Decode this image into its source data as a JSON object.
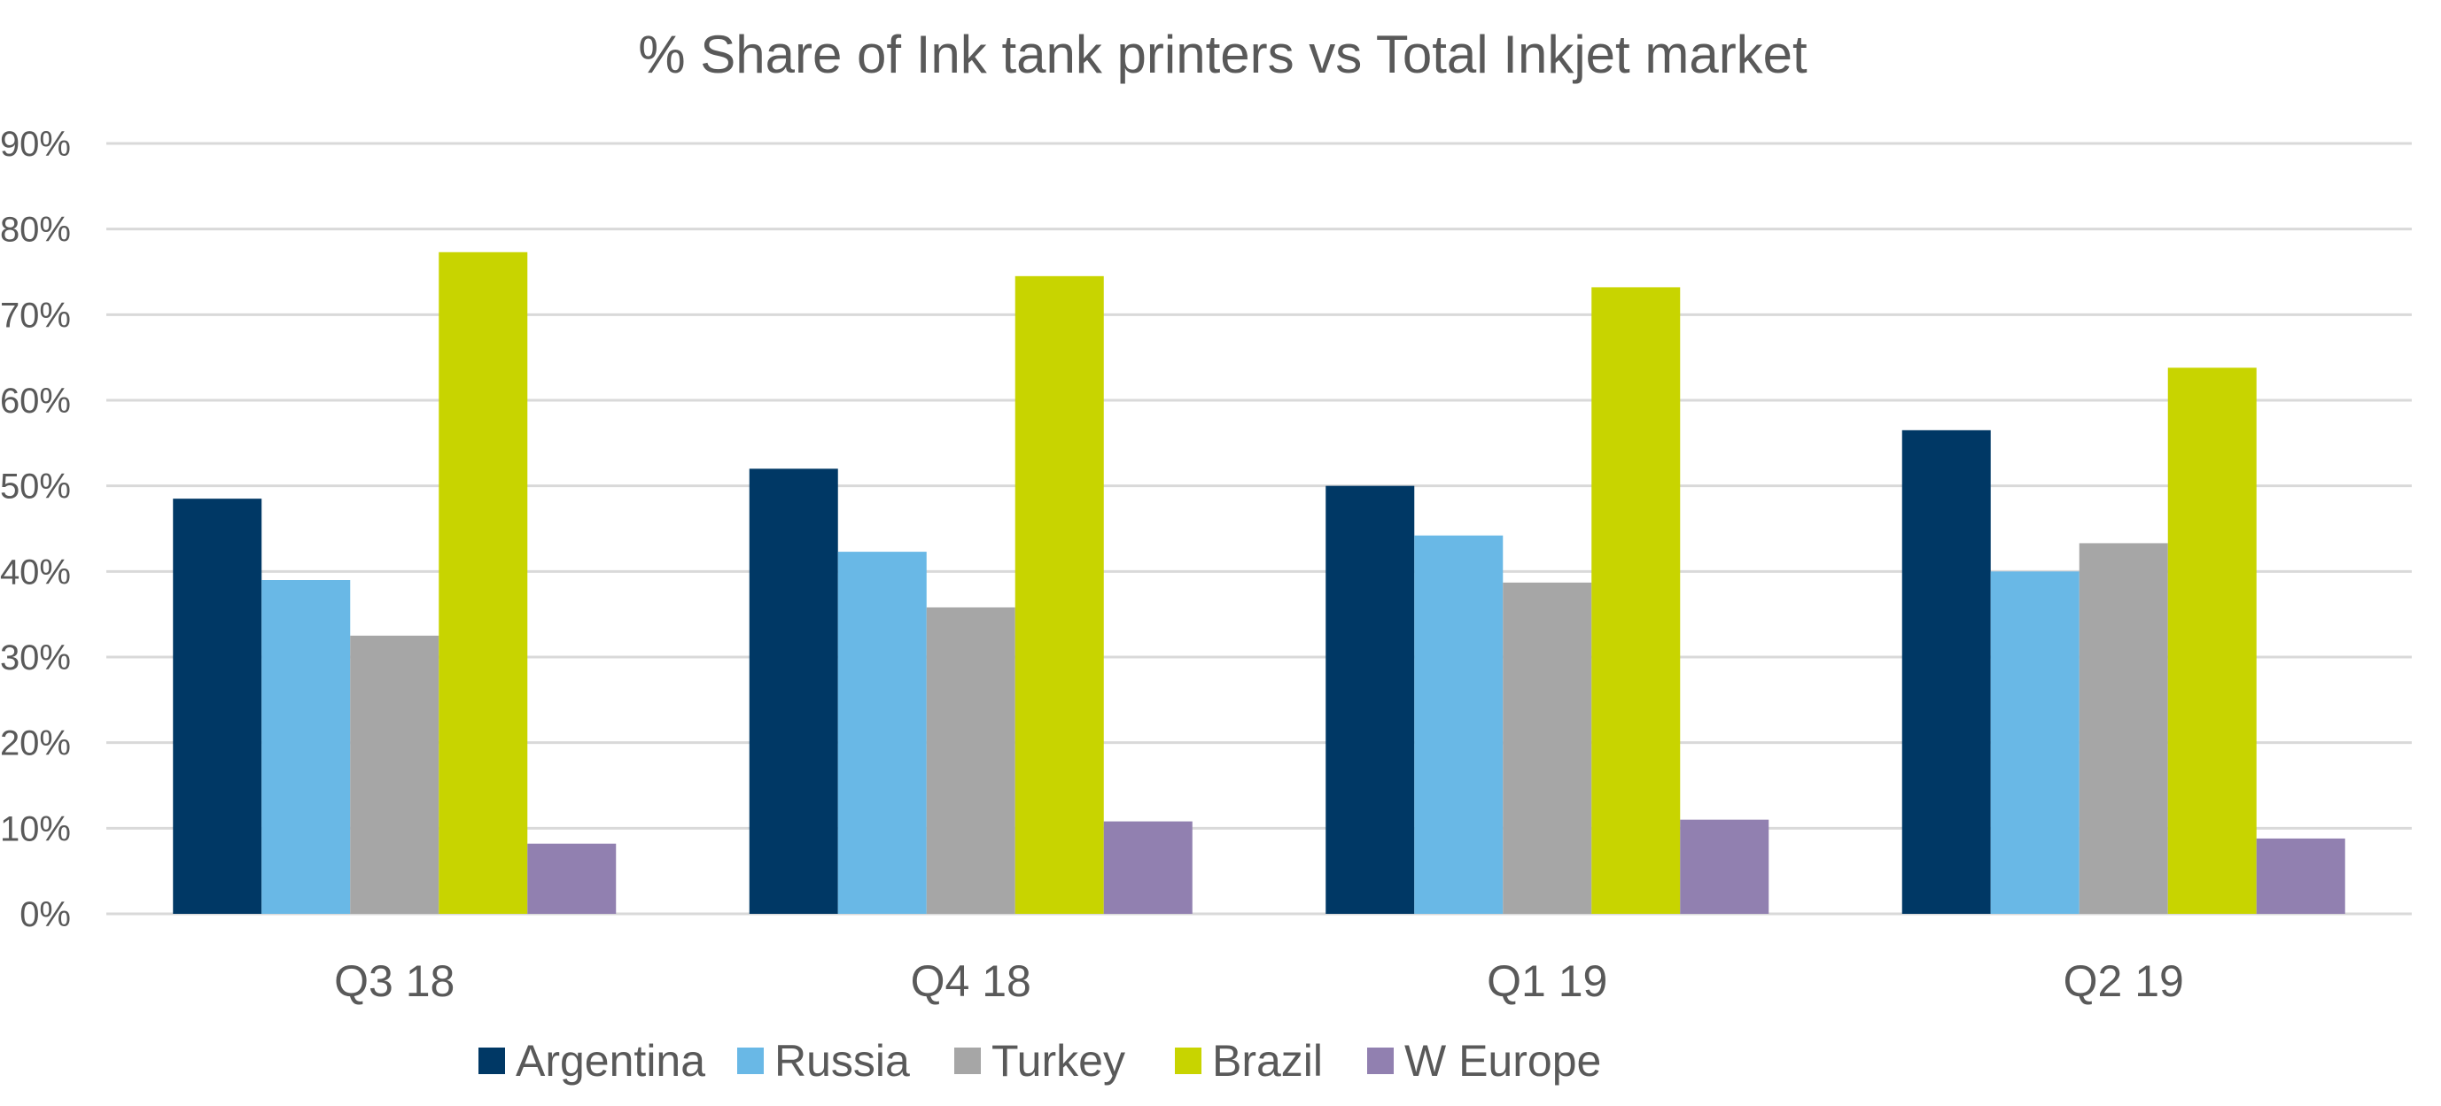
{
  "chart_data": {
    "type": "bar",
    "title": "% Share of Ink tank printers vs Total Inkjet market",
    "xlabel": "",
    "ylabel": "",
    "categories": [
      "Q3 18",
      "Q4 18",
      "Q1 19",
      "Q2 19"
    ],
    "ylim": [
      0,
      90
    ],
    "yticks": [
      "0%",
      "10%",
      "20%",
      "30%",
      "40%",
      "50%",
      "60%",
      "70%",
      "80%",
      "90%"
    ],
    "grid": true,
    "legend_position": "bottom",
    "series": [
      {
        "name": "Argentina",
        "color": "#003865",
        "values": [
          48.5,
          52,
          50,
          56.5
        ]
      },
      {
        "name": "Russia",
        "color": "#69b8e6",
        "values": [
          39,
          42.3,
          44.2,
          40
        ]
      },
      {
        "name": "Turkey",
        "color": "#a6a6a6",
        "values": [
          32.5,
          35.8,
          38.7,
          43.3
        ]
      },
      {
        "name": "Brazil",
        "color": "#c8d400",
        "values": [
          77.3,
          74.5,
          73.2,
          63.8
        ]
      },
      {
        "name": "W Europe",
        "color": "#9180b0",
        "values": [
          8.2,
          10.8,
          11,
          8.8
        ]
      }
    ]
  }
}
